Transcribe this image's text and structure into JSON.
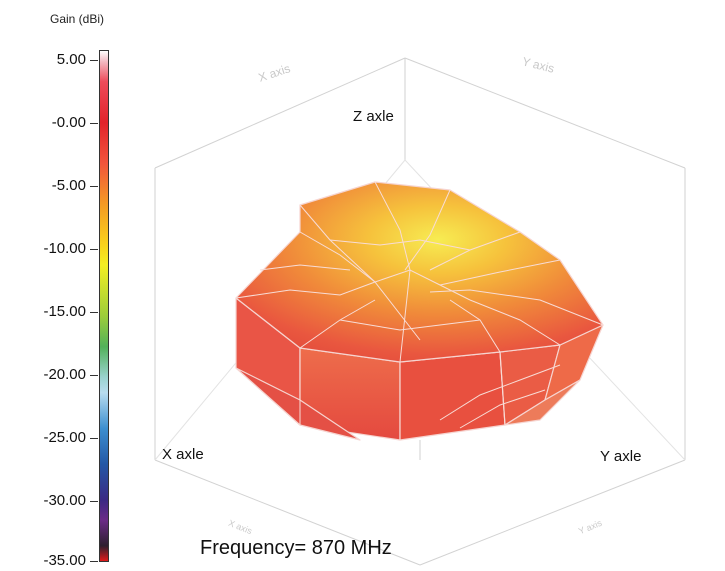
{
  "colorbar": {
    "title": "Gain (dBi)",
    "ticks": [
      "5.00",
      "-0.00",
      "-5.00",
      "-10.00",
      "-15.00",
      "-20.00",
      "-25.00",
      "-30.00",
      "-35.00"
    ],
    "colors": [
      "#ffffff",
      "#e2232b",
      "#f49a24",
      "#f3ef22",
      "#52b15a",
      "#b8dcef",
      "#2458a6",
      "#6b2b86",
      "#e01b1b"
    ]
  },
  "axes": {
    "z_label": "Z axle",
    "x_label": "X axle",
    "y_label": "Y axle",
    "top_left_faint": "X axis",
    "top_right_faint": "Y axis",
    "bottom_left_faint": "X axis",
    "bottom_right_faint": "Y axis"
  },
  "caption": "Frequency= 870 MHz",
  "surface_colors": {
    "edge": "#f6d7d4",
    "base": "#e84a3e",
    "mid": "#f07a36",
    "highlight": "#f6e24a"
  }
}
